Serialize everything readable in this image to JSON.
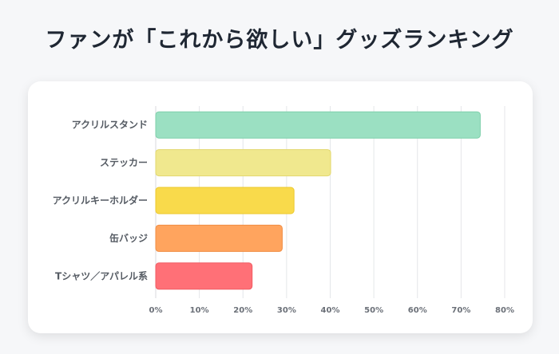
{
  "title": "ファンが「これから欲しい」グッズランキング",
  "chart_data": {
    "type": "bar",
    "orientation": "horizontal",
    "categories": [
      "アクリルスタンド",
      "ステッカー",
      "アクリルキーホルダー",
      "缶バッジ",
      "Tシャツ／アパレル系"
    ],
    "values": [
      74.4,
      40.1,
      31.7,
      29.0,
      22.1
    ],
    "colors": [
      "#9be0c2",
      "#f0e88e",
      "#f9da4b",
      "#ffa45e",
      "#ff7077"
    ],
    "border_colors": [
      "#7fd0ab",
      "#e2d86e",
      "#ecc82d",
      "#f08d43",
      "#f05c63"
    ],
    "xlim": [
      0,
      80
    ],
    "xticks": [
      "0%",
      "10%",
      "20%",
      "30%",
      "40%",
      "50%",
      "60%",
      "70%",
      "80%"
    ],
    "grid": true,
    "xlabel": "",
    "ylabel": ""
  }
}
